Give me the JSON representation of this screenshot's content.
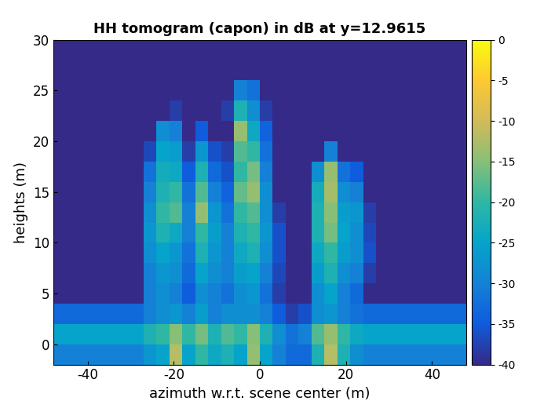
{
  "chart_data": {
    "type": "heatmap",
    "title": "HH tomogram (capon) in dB at y=12.9615",
    "x_label": "azimuth w.r.t. scene center (m)",
    "y_label": "heights (m)",
    "xlim": [
      -48,
      48
    ],
    "xticks": [
      -40,
      -20,
      0,
      20,
      40
    ],
    "ylim": [
      -2,
      30
    ],
    "yticks": [
      0,
      5,
      10,
      15,
      20,
      25,
      30
    ],
    "x_edges": [
      -48,
      -45,
      -42,
      -39,
      -36,
      -33,
      -30,
      -27,
      -24,
      -21,
      -18,
      -15,
      -12,
      -9,
      -6,
      -3,
      0,
      3,
      6,
      9,
      12,
      15,
      18,
      21,
      24,
      27,
      30,
      33,
      36,
      39,
      42,
      45,
      48
    ],
    "y_edges": [
      -2,
      0,
      2,
      4,
      6,
      8,
      10,
      12,
      14,
      16,
      18,
      20,
      22,
      24,
      26,
      28,
      30
    ],
    "clim": [
      -40,
      0
    ],
    "cticks": [
      0,
      -5,
      -10,
      -15,
      -20,
      -25,
      -30,
      -35,
      -40
    ],
    "cells": [
      [
        -30,
        -30,
        -30,
        -30,
        -30,
        -30,
        -30,
        -27,
        -25,
        -12,
        -25,
        -20,
        -24,
        -22,
        -25,
        -14,
        -25,
        -30,
        -33,
        -33,
        -22,
        -12,
        -22,
        -28,
        -30,
        -30,
        -30,
        -30,
        -30,
        -30,
        -30,
        -30
      ],
      [
        -25,
        -25,
        -25,
        -25,
        -25,
        -25,
        -25,
        -22,
        -20,
        -15,
        -20,
        -16,
        -22,
        -18,
        -20,
        -15,
        -22,
        -28,
        -32,
        -30,
        -18,
        -14,
        -20,
        -24,
        -25,
        -25,
        -25,
        -25,
        -25,
        -25,
        -25,
        -25
      ],
      [
        -33,
        -33,
        -33,
        -33,
        -33,
        -33,
        -33,
        -30,
        -28,
        -27,
        -30,
        -26,
        -30,
        -28,
        -28,
        -28,
        -30,
        -35,
        -38,
        -36,
        -28,
        -27,
        -30,
        -32,
        -33,
        -33,
        -33,
        -33,
        -33,
        -33,
        -33,
        -33
      ],
      [
        -40,
        -40,
        -40,
        -40,
        -40,
        -40,
        -40,
        -30,
        -28,
        -30,
        -35,
        -28,
        -30,
        -32,
        -28,
        -27,
        -32,
        -38,
        -40,
        -40,
        -28,
        -25,
        -30,
        -33,
        -40,
        -40,
        -40,
        -40,
        -40,
        -40,
        -40,
        -40
      ],
      [
        -40,
        -40,
        -40,
        -40,
        -40,
        -40,
        -40,
        -30,
        -27,
        -28,
        -33,
        -25,
        -28,
        -30,
        -26,
        -25,
        -30,
        -37,
        -40,
        -40,
        -26,
        -22,
        -28,
        -30,
        -38,
        -40,
        -40,
        -40,
        -40,
        -40,
        -40,
        -40
      ],
      [
        -40,
        -40,
        -40,
        -40,
        -40,
        -40,
        -40,
        -28,
        -25,
        -27,
        -32,
        -22,
        -27,
        -30,
        -24,
        -22,
        -28,
        -36,
        -40,
        -40,
        -24,
        -20,
        -26,
        -28,
        -36,
        -40,
        -40,
        -40,
        -40,
        -40,
        -40,
        -40
      ],
      [
        -40,
        -40,
        -40,
        -40,
        -40,
        -40,
        -40,
        -27,
        -22,
        -24,
        -30,
        -20,
        -26,
        -30,
        -22,
        -20,
        -27,
        -36,
        -40,
        -40,
        -22,
        -16,
        -25,
        -28,
        -37,
        -40,
        -40,
        -40,
        -40,
        -40,
        -40,
        -40
      ],
      [
        -40,
        -40,
        -40,
        -40,
        -40,
        -40,
        -40,
        -28,
        -20,
        -18,
        -30,
        -14,
        -27,
        -32,
        -20,
        -18,
        -28,
        -38,
        -40,
        -40,
        -22,
        -15,
        -26,
        -27,
        -38,
        -40,
        -40,
        -40,
        -40,
        -40,
        -40,
        -40
      ],
      [
        -40,
        -40,
        -40,
        -40,
        -40,
        -40,
        -40,
        -30,
        -22,
        -20,
        -32,
        -18,
        -30,
        -34,
        -17,
        -14,
        -28,
        -40,
        -40,
        -40,
        -23,
        -13,
        -28,
        -30,
        -40,
        -40,
        -40,
        -40,
        -40,
        -40,
        -40,
        -40
      ],
      [
        -40,
        -40,
        -40,
        -40,
        -40,
        -40,
        -40,
        -32,
        -23,
        -24,
        -35,
        -22,
        -33,
        -36,
        -20,
        -16,
        -30,
        -40,
        -40,
        -40,
        -28,
        -14,
        -32,
        -35,
        -40,
        -40,
        -40,
        -40,
        -40,
        -40,
        -40,
        -40
      ],
      [
        -40,
        -40,
        -40,
        -40,
        -40,
        -40,
        -40,
        -37,
        -25,
        -26,
        -38,
        -27,
        -36,
        -38,
        -18,
        -20,
        -32,
        -40,
        -40,
        -40,
        -40,
        -30,
        -40,
        -40,
        -40,
        -40,
        -40,
        -40,
        -40,
        -40,
        -40,
        -40
      ],
      [
        -40,
        -40,
        -40,
        -40,
        -40,
        -40,
        -40,
        -40,
        -28,
        -30,
        -40,
        -35,
        -40,
        -40,
        -14,
        -24,
        -34,
        -40,
        -40,
        -40,
        -40,
        -40,
        -40,
        -40,
        -40,
        -40,
        -40,
        -40,
        -40,
        -40,
        -40,
        -40
      ],
      [
        -40,
        -40,
        -40,
        -40,
        -40,
        -40,
        -40,
        -40,
        -40,
        -38,
        -40,
        -40,
        -40,
        -38,
        -22,
        -28,
        -38,
        -40,
        -40,
        -40,
        -40,
        -40,
        -40,
        -40,
        -40,
        -40,
        -40,
        -40,
        -40,
        -40,
        -40,
        -40
      ],
      [
        -40,
        -40,
        -40,
        -40,
        -40,
        -40,
        -40,
        -40,
        -40,
        -40,
        -40,
        -40,
        -40,
        -40,
        -30,
        -32,
        -40,
        -40,
        -40,
        -40,
        -40,
        -40,
        -40,
        -40,
        -40,
        -40,
        -40,
        -40,
        -40,
        -40,
        -40,
        -40
      ],
      [
        -40,
        -40,
        -40,
        -40,
        -40,
        -40,
        -40,
        -40,
        -40,
        -40,
        -40,
        -40,
        -40,
        -40,
        -40,
        -40,
        -40,
        -40,
        -40,
        -40,
        -40,
        -40,
        -40,
        -40,
        -40,
        -40,
        -40,
        -40,
        -40,
        -40,
        -40,
        -40
      ],
      [
        -40,
        -40,
        -40,
        -40,
        -40,
        -40,
        -40,
        -40,
        -40,
        -40,
        -40,
        -40,
        -40,
        -40,
        -40,
        -40,
        -40,
        -40,
        -40,
        -40,
        -40,
        -40,
        -40,
        -40,
        -40,
        -40,
        -40,
        -40,
        -40,
        -40,
        -40,
        -40
      ]
    ]
  }
}
